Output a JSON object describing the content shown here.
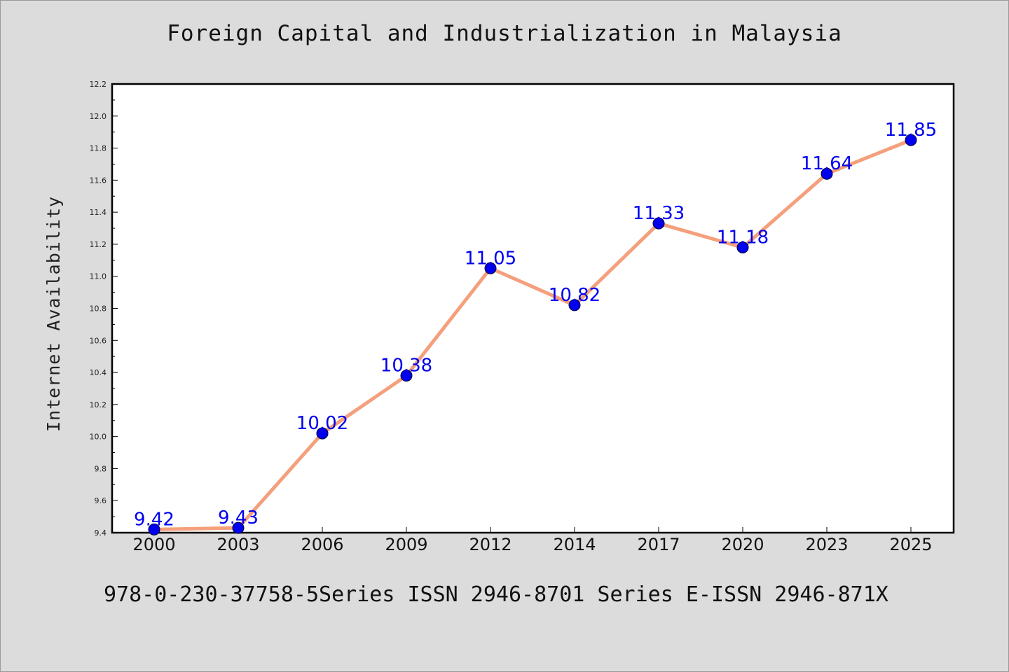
{
  "colors": {
    "background": "#dcdcdc",
    "plot_background": "#ffffff",
    "line": "#f4a07c",
    "marker": "#0000ee",
    "data_label": "#0000ee"
  },
  "footer": {
    "text": "978-0-230-37758-5Series ISSN 2946-8701 Series E-ISSN 2946-871X"
  },
  "chart_data": {
    "type": "line",
    "title": "Foreign Capital and Industrialization in Malaysia",
    "xlabel": "",
    "ylabel": "Internet Availability",
    "categories": [
      "2000",
      "2003",
      "2006",
      "2009",
      "2012",
      "2014",
      "2017",
      "2020",
      "2023",
      "2025"
    ],
    "series": [
      {
        "values": [
          9.42,
          9.43,
          10.02,
          10.38,
          11.05,
          10.82,
          11.33,
          11.18,
          11.64,
          11.85
        ],
        "data_labels": [
          "9.42",
          "9.43",
          "10.02",
          "10.38",
          "11.05",
          "10.82",
          "11.33",
          "11.18",
          "11.64",
          "11.85"
        ]
      }
    ],
    "ylim": [
      9.4,
      12.2
    ],
    "yticks": [
      "9.4",
      "9.6",
      "9.8",
      "10.0",
      "10.2",
      "10.4",
      "10.6",
      "10.8",
      "11.0",
      "11.2",
      "11.4",
      "11.6",
      "11.8",
      "12.0",
      "12.2"
    ],
    "grid": false,
    "legend": "none"
  }
}
